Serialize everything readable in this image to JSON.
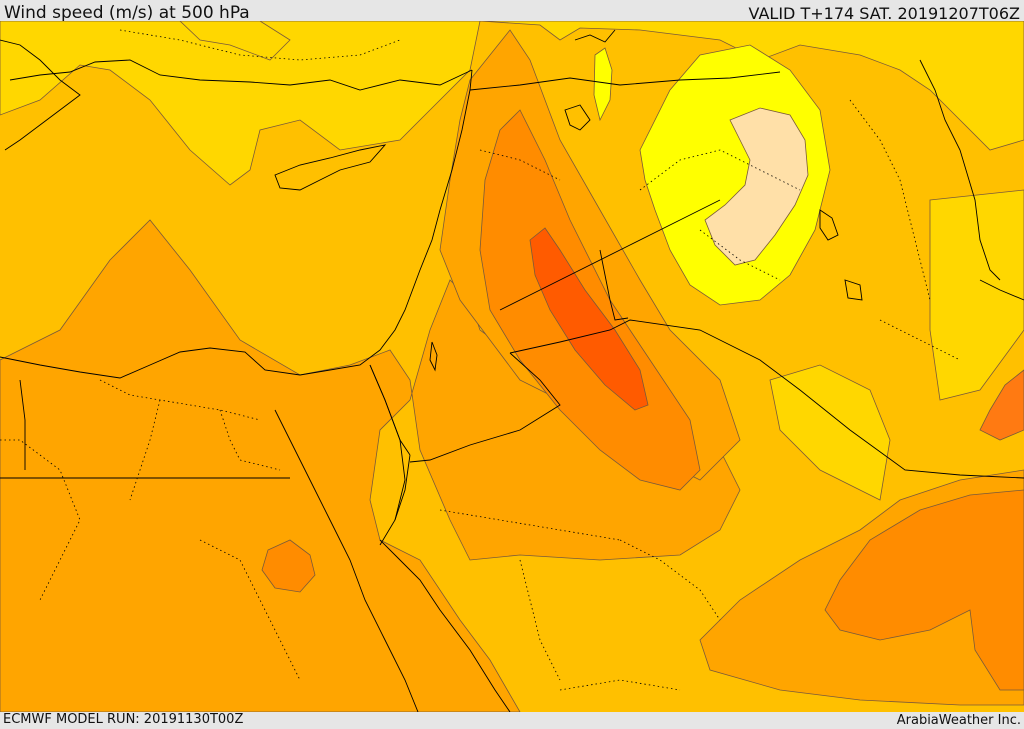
{
  "header": {
    "title": "Wind speed (m/s) at 500 hPa",
    "valid": "VALID T+174 SAT. 20191207T06Z"
  },
  "footer": {
    "model_run": "ECMWF MODEL RUN: 20191130T00Z",
    "credit": "ArabiaWeather Inc."
  },
  "map": {
    "field": "wind-speed-500hpa",
    "palette": {
      "band_ffd700": "#ffd700",
      "band_ffc000": "#ffc000",
      "band_ffa500": "#ffa500",
      "band_ff8c00": "#ff8c00",
      "band_ff7a12": "#ff7a12",
      "band_ff5b00": "#ff5b00",
      "band_ffff00": "#ffff00",
      "band_ffe0a8": "#ffe0a8",
      "contour": "#7a5a3a",
      "coastline": "#000000",
      "border": "#000000"
    }
  }
}
